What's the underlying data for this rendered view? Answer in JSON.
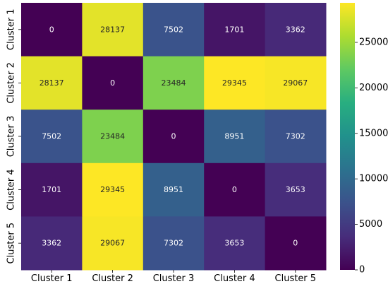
{
  "chart_data": {
    "type": "heatmap",
    "title": "",
    "xlabel": "",
    "ylabel": "",
    "x_categories": [
      "Cluster 1",
      "Cluster 2",
      "Cluster 3",
      "Cluster 4",
      "Cluster 5"
    ],
    "y_categories": [
      "Cluster 1",
      "Cluster 2",
      "Cluster 3",
      "Cluster 4",
      "Cluster 5"
    ],
    "values": [
      [
        0,
        28137,
        7502,
        1701,
        3362
      ],
      [
        28137,
        0,
        23484,
        29345,
        29067
      ],
      [
        7502,
        23484,
        0,
        8951,
        7302
      ],
      [
        1701,
        29345,
        8951,
        0,
        3653
      ],
      [
        3362,
        29067,
        7302,
        3653,
        0
      ]
    ],
    "colormap": "viridis",
    "color_range": [
      0,
      29345
    ],
    "colorbar_ticks": [
      0,
      5000,
      10000,
      15000,
      20000,
      25000
    ],
    "annotations": true,
    "grid": false,
    "legend": "right (colorbar)"
  }
}
